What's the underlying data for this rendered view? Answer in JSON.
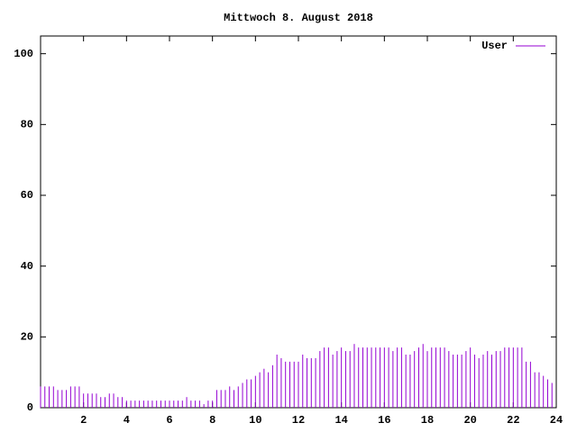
{
  "chart_data": {
    "type": "impulse",
    "title": "Mittwoch 8. August 2018",
    "x": [
      0,
      0.2,
      0.4,
      0.6,
      0.8,
      1,
      1.2,
      1.4,
      1.6,
      1.8,
      2,
      2.2,
      2.4,
      2.6,
      2.8,
      3,
      3.2,
      3.4,
      3.6,
      3.8,
      4,
      4.2,
      4.4,
      4.6,
      4.8,
      5,
      5.2,
      5.4,
      5.6,
      5.8,
      6,
      6.2,
      6.4,
      6.6,
      6.8,
      7,
      7.2,
      7.4,
      7.6,
      7.8,
      8,
      8.2,
      8.4,
      8.6,
      8.8,
      9,
      9.2,
      9.4,
      9.6,
      9.8,
      10,
      10.2,
      10.4,
      10.6,
      10.8,
      11,
      11.2,
      11.4,
      11.6,
      11.8,
      12,
      12.2,
      12.4,
      12.6,
      12.8,
      13,
      13.2,
      13.4,
      13.6,
      13.8,
      14,
      14.2,
      14.4,
      14.6,
      14.8,
      15,
      15.2,
      15.4,
      15.6,
      15.8,
      16,
      16.2,
      16.4,
      16.6,
      16.8,
      17,
      17.2,
      17.4,
      17.6,
      17.8,
      18,
      18.2,
      18.4,
      18.6,
      18.8,
      19,
      19.2,
      19.4,
      19.6,
      19.8,
      20,
      20.2,
      20.4,
      20.6,
      20.8,
      21,
      21.2,
      21.4,
      21.6,
      21.8,
      22,
      22.2,
      22.4,
      22.6,
      22.8,
      23,
      23.2,
      23.4,
      23.6,
      23.8
    ],
    "series": [
      {
        "name": "User",
        "color": "#9400d3",
        "values": [
          6,
          6,
          6,
          6,
          5,
          5,
          5,
          6,
          6,
          6,
          4,
          4,
          4,
          4,
          3,
          3,
          4,
          4,
          3,
          3,
          2,
          2,
          2,
          2,
          2,
          2,
          2,
          2,
          2,
          2,
          2,
          2,
          2,
          2,
          3,
          2,
          2,
          2,
          1,
          2,
          2,
          5,
          5,
          5,
          6,
          5,
          6,
          7,
          8,
          8,
          9,
          10,
          11,
          10,
          12,
          15,
          14,
          13,
          13,
          13,
          13,
          15,
          14,
          14,
          14,
          16,
          17,
          17,
          15,
          16,
          17,
          16,
          16,
          18,
          17,
          17,
          17,
          17,
          17,
          17,
          17,
          17,
          16,
          17,
          17,
          15,
          15,
          16,
          17,
          18,
          16,
          17,
          17,
          17,
          17,
          16,
          15,
          15,
          15,
          16,
          17,
          15,
          14,
          15,
          16,
          15,
          16,
          16,
          17,
          17,
          17,
          17,
          17,
          13,
          13,
          10,
          10,
          9,
          8,
          7
        ]
      }
    ],
    "xlim": [
      0,
      24
    ],
    "xticks": [
      2,
      4,
      6,
      8,
      10,
      12,
      14,
      16,
      18,
      20,
      22,
      24
    ],
    "ylim": [
      0,
      105
    ],
    "yticks": [
      0,
      20,
      40,
      60,
      80,
      100
    ],
    "legend": "top-right"
  }
}
